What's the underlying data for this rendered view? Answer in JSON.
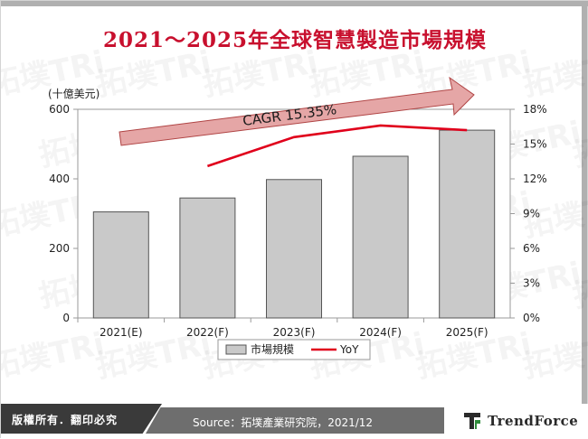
{
  "title": "2021～2025年全球智慧製造市場規模",
  "unit_label": "(十億美元)",
  "footer": {
    "rights": "版權所有．翻印必究",
    "source": "Source：拓墣產業研究院，2021/12",
    "logo": "TrendForce"
  },
  "watermark": "拓墣TRi",
  "colors": {
    "title": "#c8102e",
    "bar_fill": "#c9c9c9",
    "bar_stroke": "#555555",
    "line": "#e0001b",
    "arrow_fill": "#e5a6a6",
    "arrow_stroke": "#b04444"
  },
  "chart_data": {
    "type": "bar",
    "categories": [
      "2021(E)",
      "2022(F)",
      "2023(F)",
      "2024(F)",
      "2025(F)"
    ],
    "series": [
      {
        "name": "市場規模",
        "type": "bar",
        "axis": "left",
        "values": [
          305,
          345,
          398,
          465,
          540
        ]
      },
      {
        "name": "YoY",
        "type": "line",
        "axis": "right",
        "values": [
          null,
          13.1,
          15.6,
          16.6,
          16.2
        ]
      }
    ],
    "y_left": {
      "min": 0,
      "max": 600,
      "ticks": [
        "0",
        "200",
        "400",
        "600"
      ]
    },
    "y_right": {
      "min": 0,
      "max": 18,
      "ticks": [
        "0%",
        "3%",
        "6%",
        "9%",
        "12%",
        "15%",
        "18%"
      ]
    },
    "annotation": "CAGR 15.35%",
    "legend": {
      "position": "bottom",
      "labels": [
        "市場規模",
        "YoY"
      ]
    },
    "grid": false
  }
}
